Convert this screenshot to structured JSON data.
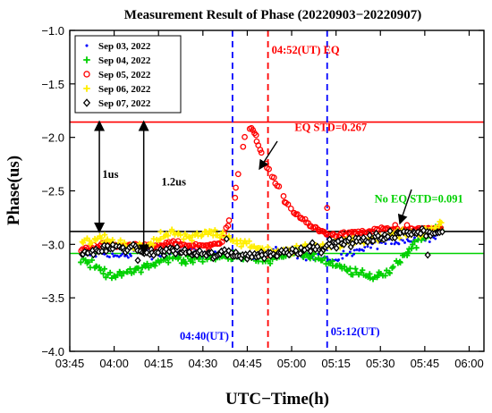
{
  "chart_data": {
    "type": "scatter",
    "title": "Measurement Result of Phase (20220903−20220907)",
    "xlabel": "UTC−Time(h)",
    "ylabel": "Phase(us)",
    "xlim": [
      225,
      365
    ],
    "ylim": [
      -4.0,
      -1.0
    ],
    "xticks": [
      {
        "v": 225,
        "label": "03:45"
      },
      {
        "v": 240,
        "label": "04:00"
      },
      {
        "v": 255,
        "label": "04:15"
      },
      {
        "v": 270,
        "label": "04:30"
      },
      {
        "v": 285,
        "label": "04:45"
      },
      {
        "v": 300,
        "label": "05:00"
      },
      {
        "v": 315,
        "label": "05:15"
      },
      {
        "v": 330,
        "label": "05:30"
      },
      {
        "v": 345,
        "label": "05:45"
      },
      {
        "v": 360,
        "label": "06:00"
      }
    ],
    "yticks": [
      {
        "v": -1.0,
        "label": "−1.0"
      },
      {
        "v": -1.5,
        "label": "−1.5"
      },
      {
        "v": -2.0,
        "label": "−2.0"
      },
      {
        "v": -2.5,
        "label": "−2.5"
      },
      {
        "v": -3.0,
        "label": "−3.0"
      },
      {
        "v": -3.5,
        "label": "−3.5"
      },
      {
        "v": -4.0,
        "label": "−4.0"
      }
    ],
    "legend_position": "top-left",
    "series": [
      {
        "name": "Sep 03, 2022",
        "color": "#0000ff",
        "marker": "dot",
        "x": [
          230,
          236,
          242,
          248,
          254,
          260,
          266,
          272,
          278,
          284,
          290,
          296,
          302,
          308,
          314,
          320,
          326,
          332,
          338,
          344,
          350
        ],
        "y": [
          -3.1,
          -3.08,
          -3.12,
          -3.06,
          -3.1,
          -3.08,
          -3.05,
          -3.1,
          -3.08,
          -3.12,
          -3.08,
          -3.05,
          -3.1,
          -3.12,
          -3.15,
          -3.1,
          -3.02,
          -2.98,
          -2.96,
          -2.94,
          -2.9
        ]
      },
      {
        "name": "Sep 04, 2022",
        "color": "#00d000",
        "marker": "plus",
        "x": [
          230,
          236,
          242,
          248,
          254,
          260,
          266,
          272,
          278,
          284,
          290,
          296,
          302,
          308,
          314,
          320,
          326,
          332,
          338,
          344,
          350
        ],
        "y": [
          -3.15,
          -3.25,
          -3.3,
          -3.22,
          -3.18,
          -3.12,
          -3.15,
          -3.12,
          -3.1,
          -3.12,
          -3.15,
          -3.1,
          -3.08,
          -3.12,
          -3.2,
          -3.25,
          -3.3,
          -3.28,
          -3.1,
          -2.95,
          -2.85
        ]
      },
      {
        "name": "Sep 05, 2022",
        "color": "#ff0000",
        "marker": "circle",
        "x": [
          230,
          236,
          242,
          248,
          254,
          260,
          266,
          272,
          276,
          280,
          282,
          284,
          286,
          288,
          290,
          292,
          294,
          296,
          298,
          300,
          303,
          306,
          310,
          314,
          320,
          326,
          332,
          338,
          344,
          350
        ],
        "y": [
          -3.05,
          -3.0,
          -3.02,
          -3.0,
          -3.03,
          -2.98,
          -3.02,
          -3.0,
          -3.0,
          -2.7,
          -2.3,
          -2.0,
          -1.9,
          -2.0,
          -2.15,
          -2.3,
          -2.4,
          -2.5,
          -2.6,
          -2.68,
          -2.75,
          -2.82,
          -2.88,
          -2.92,
          -2.9,
          -2.88,
          -2.85,
          -2.88,
          -2.86,
          -2.85
        ]
      },
      {
        "name": "Sep 06, 2022",
        "color": "#ffee00",
        "marker": "plus",
        "x": [
          230,
          236,
          242,
          248,
          254,
          260,
          266,
          272,
          278,
          284,
          290,
          296,
          302,
          308,
          314,
          320,
          326,
          332,
          338,
          344,
          350
        ],
        "y": [
          -2.98,
          -2.95,
          -3.0,
          -3.05,
          -2.95,
          -2.9,
          -2.95,
          -2.88,
          -2.92,
          -3.0,
          -3.05,
          -3.08,
          -3.05,
          -3.02,
          -3.0,
          -2.98,
          -2.95,
          -2.92,
          -2.9,
          -2.9,
          -2.82
        ]
      },
      {
        "name": "Sep 07, 2022",
        "color": "#000000",
        "marker": "diamond",
        "x": [
          230,
          236,
          242,
          248,
          254,
          260,
          266,
          272,
          278,
          284,
          290,
          296,
          302,
          308,
          314,
          320,
          326,
          332,
          338,
          344,
          350
        ],
        "y": [
          -3.08,
          -3.05,
          -3.02,
          -3.05,
          -3.08,
          -3.05,
          -3.08,
          -3.1,
          -3.08,
          -3.1,
          -3.1,
          -3.08,
          -3.05,
          -3.02,
          -3.0,
          -2.98,
          -2.95,
          -2.92,
          -2.9,
          -2.88,
          -2.9
        ]
      }
    ],
    "reference_lines": [
      {
        "orientation": "h",
        "value": -1.857,
        "color": "#ff0000",
        "style": "solid"
      },
      {
        "orientation": "h",
        "value": -2.88,
        "color": "#000000",
        "style": "solid"
      },
      {
        "orientation": "h",
        "value": -3.085,
        "color": "#00d000",
        "style": "solid"
      },
      {
        "orientation": "v",
        "value": 280,
        "color": "#0000ff",
        "style": "dashed",
        "label": "04:40(UT)"
      },
      {
        "orientation": "v",
        "value": 292,
        "color": "#ff0000",
        "style": "dashed",
        "label": "04:52(UT) EQ"
      },
      {
        "orientation": "v",
        "value": 312,
        "color": "#0000ff",
        "style": "dashed",
        "label": "05:12(UT)"
      }
    ],
    "annotations": [
      {
        "text": "1us",
        "color": "#000000",
        "x": 236,
        "y": -2.38
      },
      {
        "text": "1.2us",
        "color": "#000000",
        "x": 256,
        "y": -2.45
      },
      {
        "text": "EQ STD=0.267",
        "color": "#ff0000",
        "x": 301,
        "y": -1.94
      },
      {
        "text": "No EQ STD=0.091",
        "color": "#00d000",
        "x": 328,
        "y": -2.61
      }
    ],
    "arrows": [
      {
        "x": 235,
        "from": -1.857,
        "to": -2.88
      },
      {
        "x": 250,
        "from": -1.857,
        "to": -3.085
      }
    ]
  }
}
